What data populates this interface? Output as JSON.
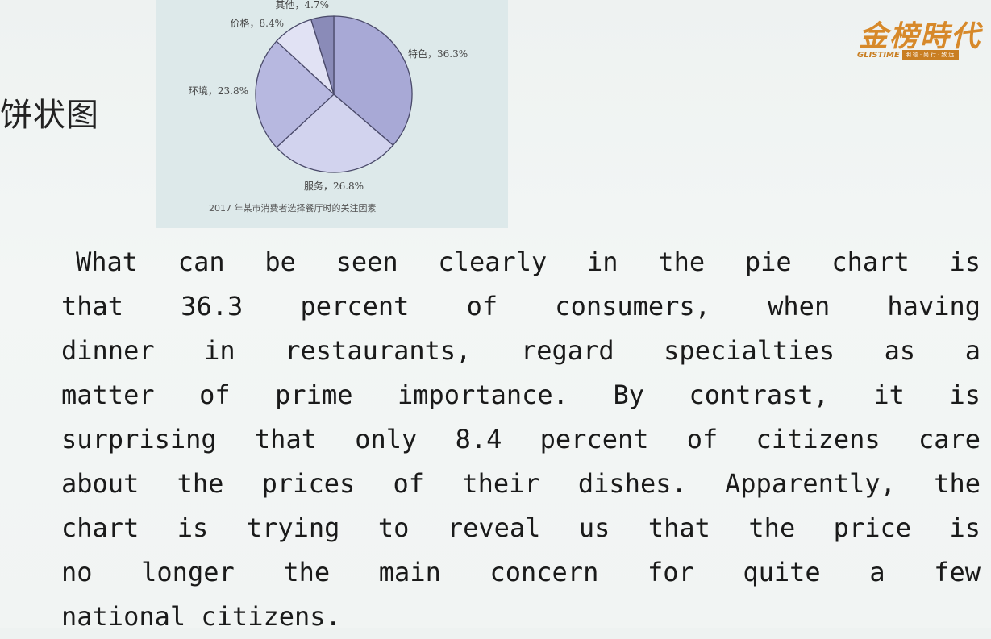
{
  "slide": {
    "heading": "饼状图"
  },
  "logo": {
    "main": "金榜時代",
    "sub_en": "GLISTIME",
    "sub_cn": "明德·尚行·致远"
  },
  "chart_data": {
    "type": "pie",
    "title": "2017 年某市消费者选择餐厅时的关注因素",
    "slices": [
      {
        "name": "特色",
        "value": 36.3,
        "label": "特色，36.3%",
        "color": "#a8a9d6"
      },
      {
        "name": "服务",
        "value": 26.8,
        "label": "服务，26.8%",
        "color": "#d2d3ee"
      },
      {
        "name": "环境",
        "value": 23.8,
        "label": "环境，23.8%",
        "color": "#b7b8e0"
      },
      {
        "name": "价格",
        "value": 8.4,
        "label": "价格，8.4%",
        "color": "#e1e2f4"
      },
      {
        "name": "其他",
        "value": 4.7,
        "label": "其他，4.7%",
        "color": "#8a8bb8"
      }
    ]
  },
  "paragraph": {
    "lines": [
      "What can be seen clearly in the pie chart is",
      "that 36.3 percent of consumers, when having",
      "dinner in restaurants, regard specialties as a",
      "matter of prime importance. By contrast, it is",
      "surprising that only 8.4 percent of citizens care",
      "about the prices of their dishes. Apparently, the",
      "chart is trying to reveal  us that the price is",
      "no longer the main concern for quite a few",
      "national citizens."
    ]
  }
}
